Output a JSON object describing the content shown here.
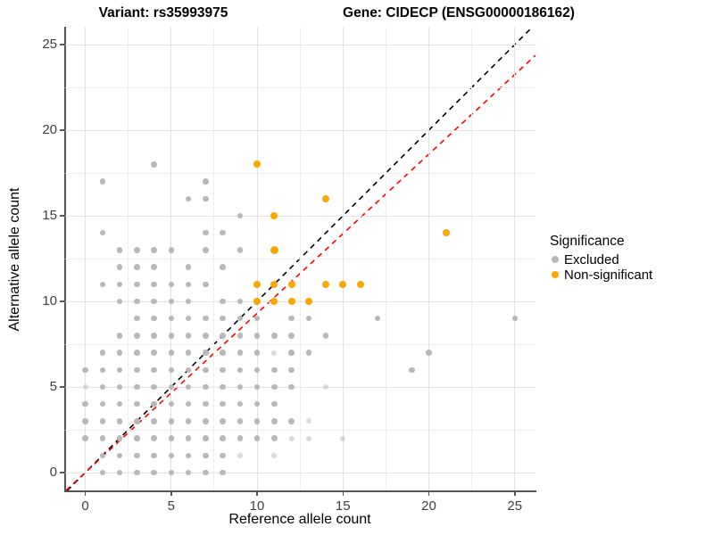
{
  "titles": {
    "variant": "Variant: rs35993975",
    "gene": "Gene: CIDECP (ENSG00000186162)"
  },
  "axes": {
    "x": {
      "label": "Reference allele count",
      "major": [
        0,
        5,
        10,
        15,
        20,
        25
      ],
      "minor": [
        2.5,
        7.5,
        12.5,
        17.5,
        22.5
      ],
      "range": [
        -1.17,
        26.2
      ]
    },
    "y": {
      "label": "Alternative allele count",
      "major": [
        0,
        5,
        10,
        15,
        20,
        25
      ],
      "minor": [
        2.5,
        7.5,
        12.5,
        17.5,
        22.5
      ],
      "range": [
        -1.05,
        26.05
      ]
    }
  },
  "legend": {
    "title": "Significance",
    "items": [
      {
        "label": "Excluded",
        "color": "#b8b8b8"
      },
      {
        "label": "Non-significant",
        "color": "#FFA500"
      }
    ]
  },
  "reference_lines": [
    {
      "name": "identity",
      "slope": 1.0,
      "intercept": 0,
      "color": "#000000",
      "dashed": true
    },
    {
      "name": "fit",
      "slope": 0.93,
      "intercept": 0,
      "color": "#FF0000",
      "dashed": true
    }
  ],
  "chart_data": {
    "type": "scatter",
    "title_left": "Variant: rs35993975",
    "title_right": "Gene: CIDECP (ENSG00000186162)",
    "xlabel": "Reference allele count",
    "ylabel": "Alternative allele count",
    "xlim": [
      -1.17,
      26.2
    ],
    "ylim": [
      -1.05,
      26.05
    ],
    "grid": "on",
    "legend_position": "right",
    "series": [
      {
        "name": "Excluded",
        "color": "#b8b8b8",
        "marker_diameter": 6.5,
        "points": [
          [
            0,
            2
          ],
          [
            0,
            3
          ],
          [
            0,
            4
          ],
          [
            0,
            6
          ],
          [
            1,
            0
          ],
          [
            1,
            1
          ],
          [
            1,
            2
          ],
          [
            1,
            3
          ],
          [
            1,
            4
          ],
          [
            1,
            5
          ],
          [
            1,
            6
          ],
          [
            1,
            7
          ],
          [
            1,
            11
          ],
          [
            1,
            14
          ],
          [
            1,
            17
          ],
          [
            2,
            0
          ],
          [
            2,
            1
          ],
          [
            2,
            2
          ],
          [
            2,
            3
          ],
          [
            2,
            4
          ],
          [
            2,
            5
          ],
          [
            2,
            6
          ],
          [
            2,
            7
          ],
          [
            2,
            8
          ],
          [
            2,
            10
          ],
          [
            2,
            11
          ],
          [
            2,
            12
          ],
          [
            2,
            13
          ],
          [
            3,
            0
          ],
          [
            3,
            1
          ],
          [
            3,
            2
          ],
          [
            3,
            3
          ],
          [
            3,
            4
          ],
          [
            3,
            5
          ],
          [
            3,
            6
          ],
          [
            3,
            7
          ],
          [
            3,
            8
          ],
          [
            3,
            9
          ],
          [
            3,
            10
          ],
          [
            3,
            11
          ],
          [
            3,
            12
          ],
          [
            3,
            13
          ],
          [
            4,
            0
          ],
          [
            4,
            1
          ],
          [
            4,
            2
          ],
          [
            4,
            3
          ],
          [
            4,
            4
          ],
          [
            4,
            5
          ],
          [
            4,
            6
          ],
          [
            4,
            7
          ],
          [
            4,
            8
          ],
          [
            4,
            9
          ],
          [
            4,
            10
          ],
          [
            4,
            11
          ],
          [
            4,
            12
          ],
          [
            4,
            13
          ],
          [
            4,
            18
          ],
          [
            5,
            0
          ],
          [
            5,
            1
          ],
          [
            5,
            2
          ],
          [
            5,
            3
          ],
          [
            5,
            4
          ],
          [
            5,
            5
          ],
          [
            5,
            6
          ],
          [
            5,
            7
          ],
          [
            5,
            8
          ],
          [
            5,
            9
          ],
          [
            5,
            10
          ],
          [
            5,
            11
          ],
          [
            5,
            13
          ],
          [
            6,
            0
          ],
          [
            6,
            1
          ],
          [
            6,
            2
          ],
          [
            6,
            3
          ],
          [
            6,
            4
          ],
          [
            6,
            5
          ],
          [
            6,
            6
          ],
          [
            6,
            7
          ],
          [
            6,
            8
          ],
          [
            6,
            9
          ],
          [
            6,
            10
          ],
          [
            6,
            11
          ],
          [
            6,
            12
          ],
          [
            6,
            16
          ],
          [
            7,
            0
          ],
          [
            7,
            1
          ],
          [
            7,
            2
          ],
          [
            7,
            3
          ],
          [
            7,
            4
          ],
          [
            7,
            5
          ],
          [
            7,
            6
          ],
          [
            7,
            7
          ],
          [
            7,
            8
          ],
          [
            7,
            9
          ],
          [
            7,
            11
          ],
          [
            7,
            13
          ],
          [
            7,
            14
          ],
          [
            7,
            16
          ],
          [
            7,
            17
          ],
          [
            8,
            0
          ],
          [
            8,
            1
          ],
          [
            8,
            2
          ],
          [
            8,
            3
          ],
          [
            8,
            4
          ],
          [
            8,
            5
          ],
          [
            8,
            6
          ],
          [
            8,
            7
          ],
          [
            8,
            8
          ],
          [
            8,
            9
          ],
          [
            8,
            10
          ],
          [
            8,
            12
          ],
          [
            8,
            14
          ],
          [
            9,
            2
          ],
          [
            9,
            3
          ],
          [
            9,
            4
          ],
          [
            9,
            5
          ],
          [
            9,
            6
          ],
          [
            9,
            7
          ],
          [
            9,
            8
          ],
          [
            9,
            9
          ],
          [
            9,
            10
          ],
          [
            9,
            13
          ],
          [
            9,
            15
          ],
          [
            10,
            2
          ],
          [
            10,
            3
          ],
          [
            10,
            4
          ],
          [
            10,
            5
          ],
          [
            10,
            6
          ],
          [
            10,
            7
          ],
          [
            10,
            8
          ],
          [
            10,
            9
          ],
          [
            11,
            2
          ],
          [
            11,
            3
          ],
          [
            11,
            4
          ],
          [
            11,
            5
          ],
          [
            11,
            6
          ],
          [
            11,
            8
          ],
          [
            12,
            3
          ],
          [
            12,
            5
          ],
          [
            12,
            6
          ],
          [
            12,
            7
          ],
          [
            12,
            8
          ],
          [
            12,
            9
          ],
          [
            13,
            7
          ],
          [
            13,
            9
          ],
          [
            14,
            8
          ],
          [
            17,
            9
          ],
          [
            19,
            6
          ],
          [
            20,
            7
          ],
          [
            25,
            9
          ]
        ],
        "points_light": [
          [
            0,
            5
          ],
          [
            9,
            1
          ],
          [
            11,
            1
          ],
          [
            11,
            7
          ],
          [
            12,
            2
          ],
          [
            13,
            2
          ],
          [
            13,
            3
          ],
          [
            14,
            5
          ],
          [
            15,
            2
          ]
        ]
      },
      {
        "name": "Non-significant",
        "color": "#FFA500",
        "marker_diameter": 8,
        "points": [
          [
            10,
            18
          ],
          [
            14,
            16
          ],
          [
            11,
            15
          ],
          [
            21,
            14
          ],
          [
            10,
            11
          ],
          [
            11,
            11
          ],
          [
            12,
            11
          ],
          [
            14,
            11
          ],
          [
            15,
            11
          ],
          [
            16,
            11
          ],
          [
            10,
            10
          ],
          [
            11,
            10
          ],
          [
            12,
            10
          ],
          [
            13,
            10
          ]
        ],
        "points_large": [
          [
            11,
            13
          ]
        ]
      }
    ]
  }
}
